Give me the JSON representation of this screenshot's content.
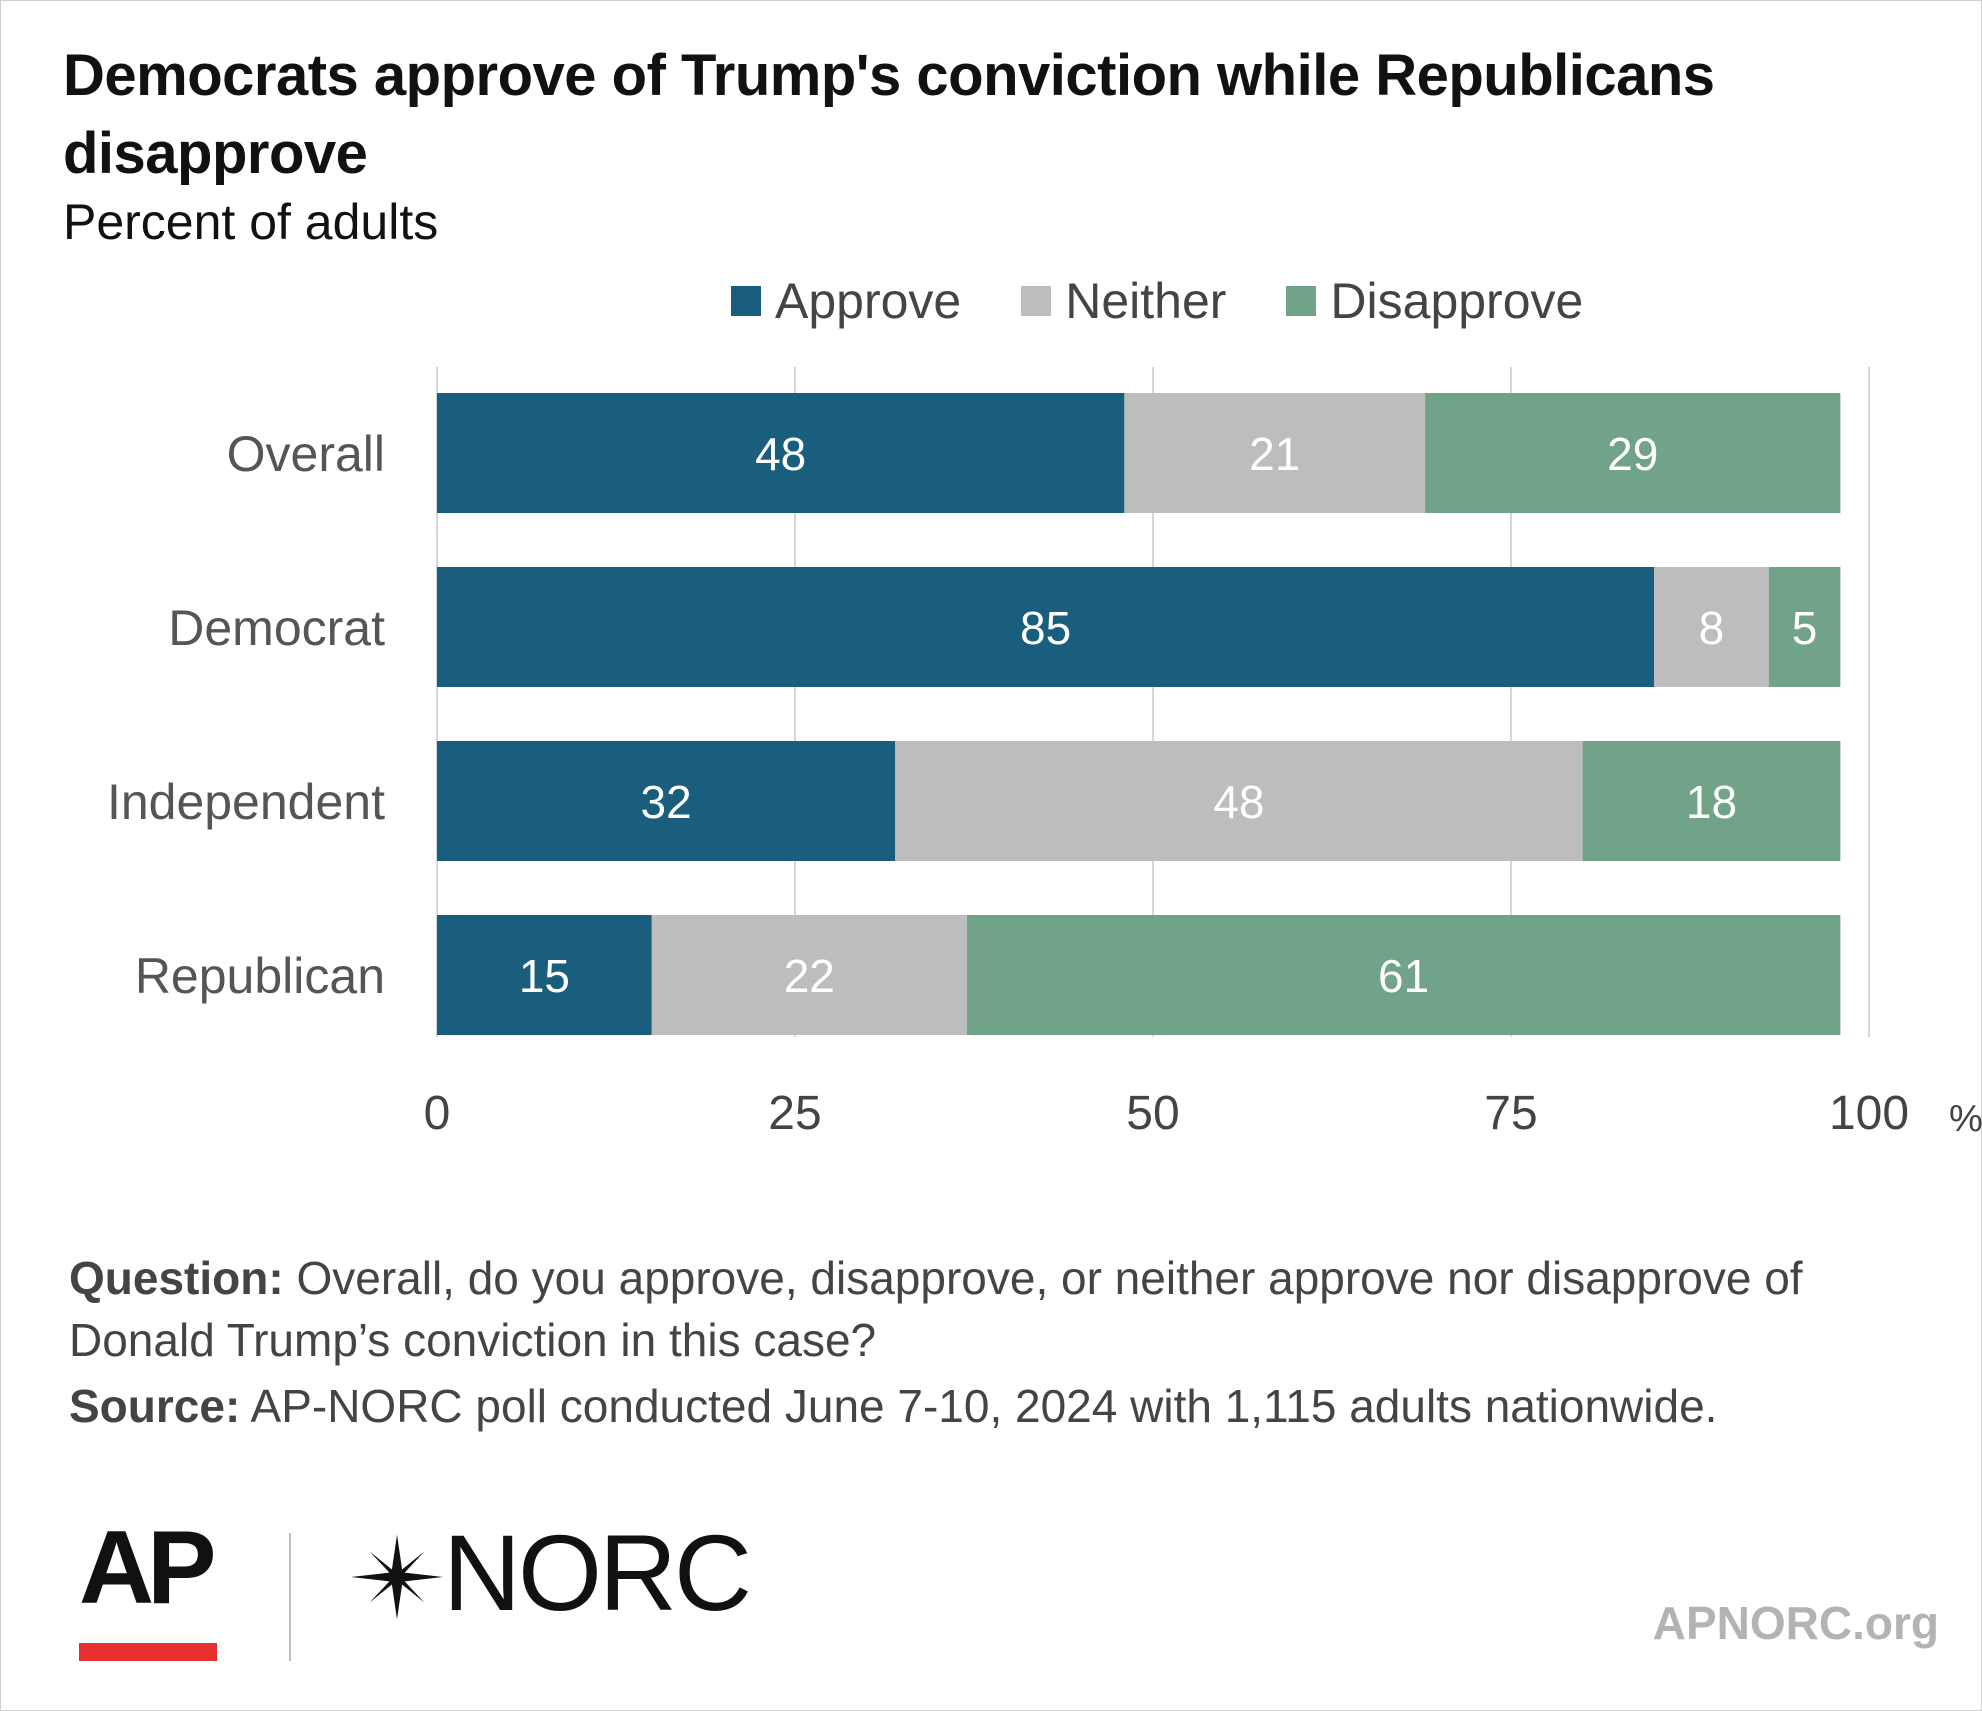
{
  "chart_data": {
    "type": "bar",
    "orientation": "horizontal",
    "stacked": true,
    "title": "Democrats approve of Trump's conviction while Republicans disapprove",
    "subtitle": "Percent of adults",
    "categories": [
      "Overall",
      "Democrat",
      "Independent",
      "Republican"
    ],
    "series": [
      {
        "name": "Approve",
        "color": "#1a5e7d",
        "values": [
          48,
          85,
          32,
          15
        ]
      },
      {
        "name": "Neither",
        "color": "#bdbdbd",
        "values": [
          21,
          8,
          48,
          22
        ]
      },
      {
        "name": "Disapprove",
        "color": "#70a387",
        "values": [
          29,
          5,
          18,
          61
        ]
      }
    ],
    "xlim": [
      0,
      100
    ],
    "xticks": [
      "0",
      "25",
      "50",
      "75",
      "100"
    ],
    "x_unit": "%",
    "grid": true,
    "legend_position": "top"
  },
  "footer": {
    "question_label": "Question:",
    "question_text": "Overall, do you approve, disapprove, or neither approve nor disapprove of Donald Trump’s conviction in this case?",
    "source_label": "Source:",
    "source_text": "AP-NORC poll conducted June 7-10, 2024 with 1,115 adults nationwide.",
    "url": "APNORC.org"
  },
  "logos": {
    "ap": "AP",
    "norc": "NORC",
    "ap_accent_color": "#e8312f"
  }
}
